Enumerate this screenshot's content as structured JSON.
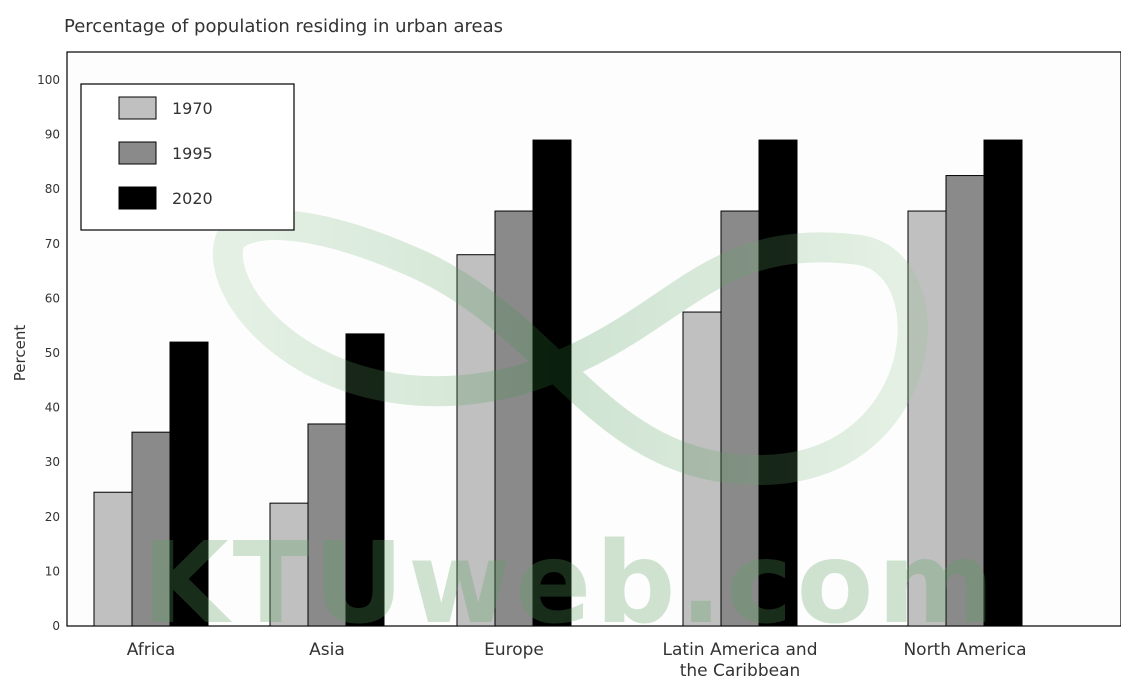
{
  "chart_data": {
    "type": "bar",
    "title": "Percentage of population residing in urban areas",
    "ylabel": "Percent",
    "xlabel": "",
    "ylim": [
      0,
      100
    ],
    "yticks": [
      0,
      10,
      20,
      30,
      40,
      50,
      60,
      70,
      80,
      90,
      100
    ],
    "categories": [
      [
        "Africa"
      ],
      [
        "Asia"
      ],
      [
        "Europe"
      ],
      [
        "Latin America and",
        "the Caribbean"
      ],
      [
        "North America"
      ]
    ],
    "series": [
      {
        "name": "1970",
        "color": "#c0c0c0",
        "values": [
          24.5,
          22.5,
          68.0,
          57.5,
          76.0
        ]
      },
      {
        "name": "1995",
        "color": "#8a8a8a",
        "values": [
          35.5,
          37.0,
          76.0,
          76.0,
          82.5
        ]
      },
      {
        "name": "2020",
        "color": "#000000",
        "values": [
          52.0,
          53.5,
          89.0,
          89.0,
          89.0
        ]
      }
    ],
    "legend_position": "top-left",
    "grid": false
  },
  "watermark": {
    "text": "KTUweb.com",
    "color": "#5aa060"
  }
}
